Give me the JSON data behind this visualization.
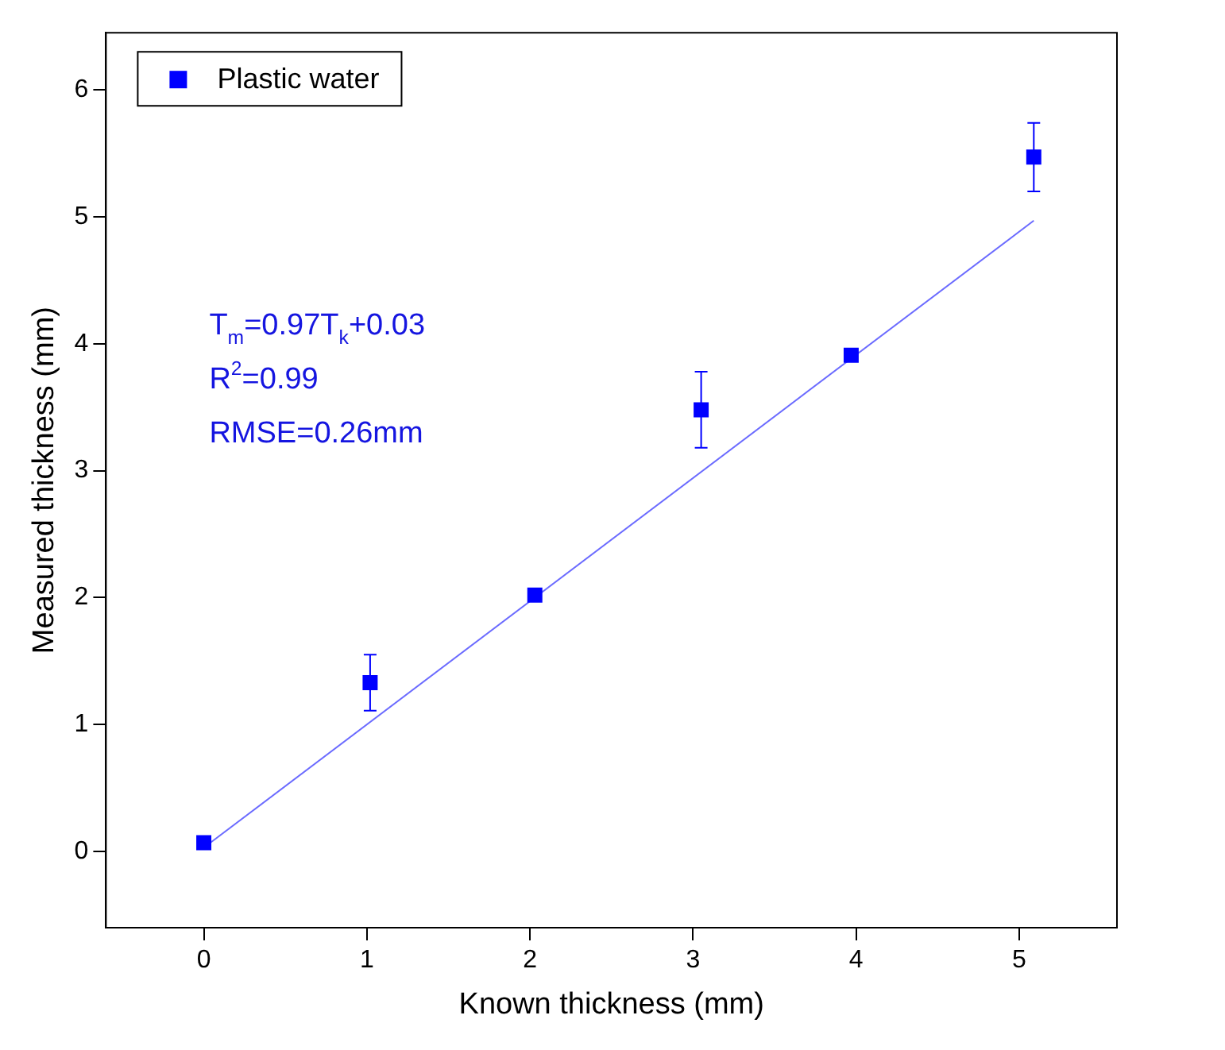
{
  "chart_data": {
    "type": "scatter",
    "xlabel": "Known thickness (mm)",
    "ylabel": "Measured thickness (mm)",
    "xlim": [
      -0.6,
      5.6
    ],
    "ylim": [
      -0.6,
      6.45
    ],
    "xticks": [
      0,
      1,
      2,
      3,
      4,
      5
    ],
    "yticks": [
      0,
      1,
      2,
      3,
      4,
      5,
      6
    ],
    "grid": false,
    "legend": "top left",
    "marker": "square",
    "series": [
      {
        "name": "Plastic water",
        "color": "#0000ff",
        "x": [
          0,
          1.02,
          2.03,
          3.05,
          3.97,
          5.09
        ],
        "values": [
          0.07,
          1.33,
          2.02,
          3.48,
          3.91,
          5.47
        ],
        "errors": [
          null,
          0.22,
          null,
          0.3,
          null,
          0.27
        ]
      },
      {
        "type": "line",
        "color": "#6b6bff",
        "x": [
          0,
          5.09
        ],
        "values": [
          0.03,
          4.97
        ],
        "marker": "none",
        "line_style": "solid"
      }
    ],
    "annotations": [
      "T$_{m}$=0.97T$_{k}$+0.03",
      "R$^{2}$=0.99",
      "RMSE=0.26mm"
    ]
  }
}
